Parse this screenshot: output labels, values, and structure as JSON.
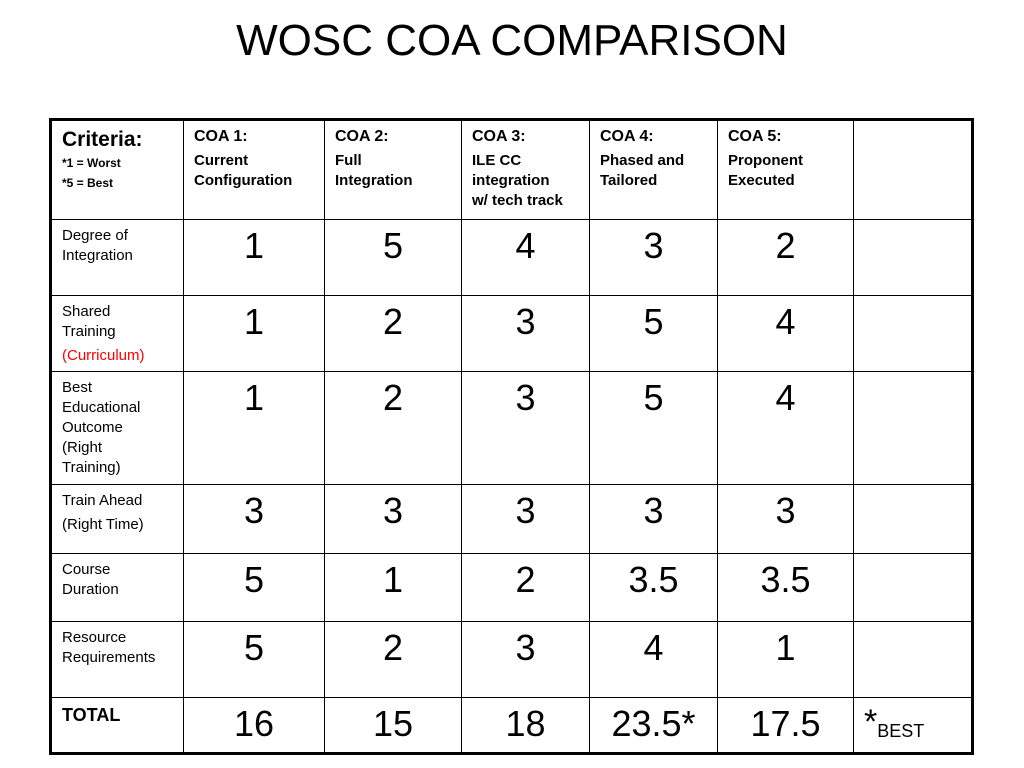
{
  "title": "WOSC COA COMPARISON",
  "criteria_header": {
    "title": "Criteria:",
    "note1": "*1 = Worst",
    "note2": "*5 = Best"
  },
  "coas": [
    {
      "label": "COA 1:",
      "name_line1": "Current",
      "name_line2": "Configuration",
      "name_line3": ""
    },
    {
      "label": "COA 2:",
      "name_line1": "Full",
      "name_line2": "Integration",
      "name_line3": ""
    },
    {
      "label": "COA 3:",
      "name_line1": "ILE CC",
      "name_line2": "integration",
      "name_line3": "w/ tech track"
    },
    {
      "label": "COA 4:",
      "name_line1": "Phased and",
      "name_line2": "Tailored",
      "name_line3": ""
    },
    {
      "label": "COA 5:",
      "name_line1": "Proponent",
      "name_line2": "Executed",
      "name_line3": ""
    }
  ],
  "rows": [
    {
      "label_lines": [
        "Degree of",
        "Integration"
      ],
      "label_red": "",
      "scores": [
        "1",
        "5",
        "4",
        "3",
        "2"
      ]
    },
    {
      "label_lines": [
        "Shared",
        "Training"
      ],
      "label_red": "(Curriculum)",
      "scores": [
        "1",
        "2",
        "3",
        "5",
        "4"
      ]
    },
    {
      "label_lines": [
        "Best",
        "Educational",
        "Outcome",
        "(Right",
        "Training)"
      ],
      "label_red": "",
      "scores": [
        "1",
        "2",
        "3",
        "5",
        "4"
      ]
    },
    {
      "label_lines": [
        "Train Ahead",
        "(Right Time)"
      ],
      "label_red": "",
      "scores": [
        "3",
        "3",
        "3",
        "3",
        "3"
      ]
    },
    {
      "label_lines": [
        "Course",
        "Duration"
      ],
      "label_red": "",
      "scores": [
        "5",
        "1",
        "2",
        "3.5",
        "3.5"
      ]
    },
    {
      "label_lines": [
        "Resource",
        "Requirements"
      ],
      "label_red": "",
      "scores": [
        "5",
        "2",
        "3",
        "4",
        "1"
      ]
    }
  ],
  "total": {
    "label": "TOTAL",
    "scores": [
      "16",
      "15",
      "18",
      "23.5*",
      "17.5"
    ],
    "best_star": "*",
    "best_text": "BEST"
  },
  "colors": {
    "red_label": "#ff0000",
    "border": "#000000"
  }
}
